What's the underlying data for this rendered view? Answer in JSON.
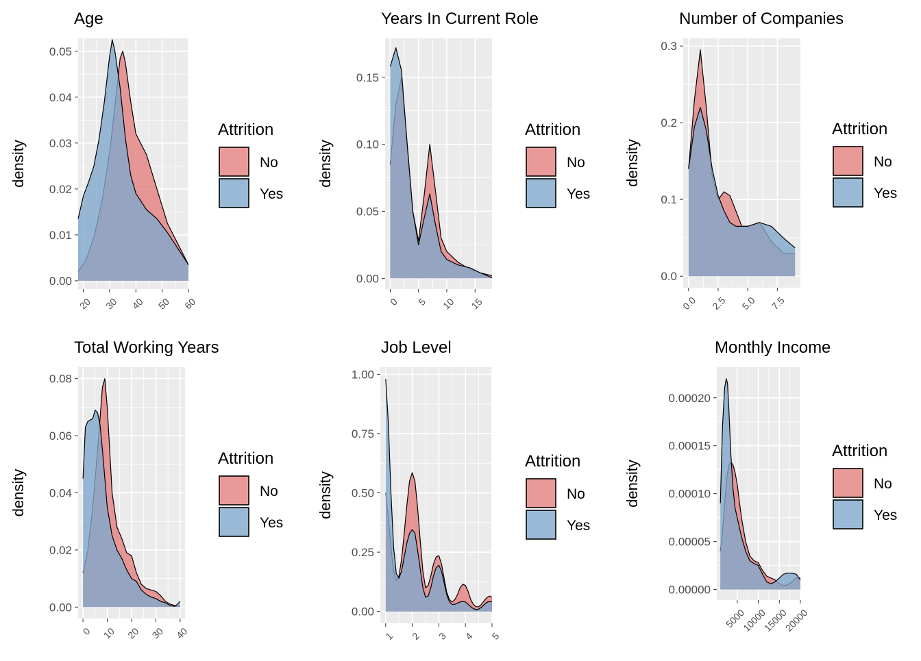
{
  "colors": {
    "no": "#e57f7f",
    "yes": "#7fa8cc",
    "panel": "#ebebeb",
    "grid": "#ffffff",
    "tick_label": "#4d4d4d"
  },
  "chart_data": [
    {
      "type": "area",
      "title": "Age",
      "xlabel": "",
      "ylabel": "density",
      "xlim": [
        18,
        60
      ],
      "ylim": [
        -0.0018,
        0.0528
      ],
      "x_ticks": [
        20,
        30,
        40,
        50,
        60
      ],
      "x_tick_labels": [
        "20",
        "30",
        "40",
        "50",
        "60"
      ],
      "y_ticks": [
        0,
        0.01,
        0.02,
        0.03,
        0.04,
        0.05
      ],
      "y_tick_labels": [
        "0.00",
        "0.01",
        "0.02",
        "0.03",
        "0.04",
        "0.05"
      ],
      "legend": {
        "title": "Attrition",
        "position": "right",
        "entries": [
          "No",
          "Yes"
        ]
      },
      "series": [
        {
          "name": "No",
          "x": [
            18,
            21,
            24,
            27,
            30,
            32,
            34,
            35,
            36,
            38,
            40,
            44,
            48,
            52,
            56,
            60
          ],
          "y": [
            0.002,
            0.0045,
            0.0095,
            0.017,
            0.028,
            0.038,
            0.0485,
            0.05,
            0.0475,
            0.039,
            0.032,
            0.0275,
            0.02,
            0.0125,
            0.008,
            0.0035
          ]
        },
        {
          "name": "Yes",
          "x": [
            18,
            20,
            22,
            24,
            26,
            28,
            30,
            31,
            32,
            34,
            36,
            38,
            40,
            44,
            48,
            52,
            56,
            60
          ],
          "y": [
            0.0135,
            0.0185,
            0.0215,
            0.025,
            0.031,
            0.039,
            0.049,
            0.0525,
            0.05,
            0.042,
            0.031,
            0.023,
            0.019,
            0.0155,
            0.0135,
            0.0105,
            0.007,
            0.0035
          ]
        }
      ]
    },
    {
      "type": "area",
      "title": "Years In Current Role",
      "xlabel": "",
      "ylabel": "density",
      "xlim": [
        -0.9,
        18.0
      ],
      "ylim": [
        -0.008,
        0.179
      ],
      "x_ticks": [
        0,
        5,
        10,
        15
      ],
      "x_tick_labels": [
        "0",
        "5",
        "10",
        "15"
      ],
      "y_ticks": [
        0,
        0.05,
        0.1,
        0.15
      ],
      "y_tick_labels": [
        "0.00",
        "0.05",
        "0.10",
        "0.15"
      ],
      "legend": {
        "title": "Attrition",
        "position": "right",
        "entries": [
          "No",
          "Yes"
        ]
      },
      "series": [
        {
          "name": "No",
          "x": [
            0,
            1,
            2,
            3,
            4,
            5,
            6,
            7,
            8,
            9,
            10,
            12,
            14,
            16,
            18
          ],
          "y": [
            0.085,
            0.13,
            0.15,
            0.1,
            0.05,
            0.028,
            0.062,
            0.1,
            0.065,
            0.03,
            0.02,
            0.012,
            0.007,
            0.004,
            0.002
          ]
        },
        {
          "name": "Yes",
          "x": [
            0,
            1,
            2,
            3,
            4,
            5,
            6,
            7,
            8,
            9,
            10,
            12,
            14,
            16,
            18
          ],
          "y": [
            0.158,
            0.172,
            0.155,
            0.1,
            0.05,
            0.025,
            0.045,
            0.063,
            0.04,
            0.02,
            0.014,
            0.01,
            0.008,
            0.004,
            0.0005
          ]
        }
      ]
    },
    {
      "type": "area",
      "title": "Number of Companies",
      "xlabel": "",
      "ylabel": "density",
      "xlim": [
        -0.45,
        9.45
      ],
      "ylim": [
        -0.015,
        0.31
      ],
      "x_ticks": [
        0,
        2.5,
        5,
        7.5
      ],
      "x_tick_labels": [
        "0.0",
        "2.5",
        "5.0",
        "7.5"
      ],
      "y_ticks": [
        0,
        0.1,
        0.2,
        0.3
      ],
      "y_tick_labels": [
        "0.0",
        "0.1",
        "0.2",
        "0.3"
      ],
      "legend": {
        "title": "Attrition",
        "position": "right",
        "entries": [
          "No",
          "Yes"
        ]
      },
      "series": [
        {
          "name": "No",
          "x": [
            0,
            0.5,
            1,
            1.5,
            2,
            2.5,
            3,
            3.5,
            4,
            4.5,
            5,
            6,
            7,
            8,
            9
          ],
          "y": [
            0.14,
            0.23,
            0.295,
            0.22,
            0.13,
            0.1,
            0.11,
            0.105,
            0.085,
            0.065,
            0.065,
            0.07,
            0.045,
            0.03,
            0.03
          ]
        },
        {
          "name": "Yes",
          "x": [
            0,
            0.5,
            1,
            1.5,
            2,
            2.5,
            3,
            3.5,
            4,
            5,
            6,
            7,
            8,
            9
          ],
          "y": [
            0.14,
            0.195,
            0.22,
            0.19,
            0.14,
            0.105,
            0.085,
            0.07,
            0.065,
            0.065,
            0.07,
            0.065,
            0.05,
            0.037
          ]
        }
      ]
    },
    {
      "type": "area",
      "title": "Total Working Years",
      "xlabel": "",
      "ylabel": "density",
      "xlim": [
        -2.0,
        42.0
      ],
      "ylim": [
        -0.004,
        0.084
      ],
      "x_ticks": [
        0,
        10,
        20,
        30,
        40
      ],
      "x_tick_labels": [
        "0",
        "10",
        "20",
        "30",
        "40"
      ],
      "y_ticks": [
        0,
        0.02,
        0.04,
        0.06,
        0.08
      ],
      "y_tick_labels": [
        "0.00",
        "0.02",
        "0.04",
        "0.06",
        "0.08"
      ],
      "legend": {
        "title": "Attrition",
        "position": "right",
        "entries": [
          "No",
          "Yes"
        ]
      },
      "series": [
        {
          "name": "No",
          "x": [
            0,
            2,
            4,
            6,
            8,
            9,
            10,
            12,
            14,
            16,
            18,
            20,
            22,
            24,
            26,
            28,
            30,
            32,
            34,
            36,
            38,
            40
          ],
          "y": [
            0.012,
            0.02,
            0.035,
            0.055,
            0.077,
            0.08,
            0.07,
            0.04,
            0.028,
            0.024,
            0.019,
            0.018,
            0.012,
            0.008,
            0.0065,
            0.006,
            0.0055,
            0.004,
            0.002,
            0.001,
            0.0005,
            0.0002
          ]
        },
        {
          "name": "Yes",
          "x": [
            0,
            1,
            2,
            4,
            5,
            6,
            7,
            8,
            10,
            12,
            14,
            16,
            18,
            20,
            22,
            24,
            26,
            28,
            30,
            32,
            34,
            36,
            38,
            40
          ],
          "y": [
            0.045,
            0.063,
            0.065,
            0.066,
            0.069,
            0.068,
            0.064,
            0.055,
            0.035,
            0.025,
            0.02,
            0.017,
            0.013,
            0.01,
            0.009,
            0.006,
            0.0045,
            0.0035,
            0.003,
            0.002,
            0.0015,
            0.0005,
            0.0003,
            0.002
          ]
        }
      ]
    },
    {
      "type": "area",
      "title": "Job Level",
      "xlabel": "",
      "ylabel": "density",
      "xlim": [
        0.8,
        5.0
      ],
      "ylim": [
        -0.05,
        1.03
      ],
      "x_ticks": [
        1,
        2,
        3,
        4,
        5
      ],
      "x_tick_labels": [
        "1",
        "2",
        "3",
        "4",
        "5"
      ],
      "y_ticks": [
        0,
        0.25,
        0.5,
        0.75,
        1.0
      ],
      "y_tick_labels": [
        "0.00",
        "0.25",
        "0.50",
        "0.75",
        "1.00"
      ],
      "legend": {
        "title": "Attrition",
        "position": "right",
        "entries": [
          "No",
          "Yes"
        ]
      },
      "series": [
        {
          "name": "No",
          "x": [
            1,
            1.1,
            1.2,
            1.3,
            1.4,
            1.5,
            1.6,
            1.7,
            1.8,
            1.9,
            2,
            2.1,
            2.2,
            2.3,
            2.4,
            2.5,
            2.6,
            2.7,
            2.8,
            2.9,
            3,
            3.1,
            3.2,
            3.3,
            3.4,
            3.5,
            3.6,
            3.7,
            3.8,
            3.9,
            4,
            4.1,
            4.2,
            4.3,
            4.4,
            4.5,
            4.6,
            4.7,
            4.8,
            4.9,
            5
          ],
          "y": [
            0.5,
            0.4,
            0.27,
            0.17,
            0.13,
            0.15,
            0.22,
            0.33,
            0.45,
            0.55,
            0.585,
            0.55,
            0.44,
            0.3,
            0.17,
            0.1,
            0.11,
            0.15,
            0.2,
            0.23,
            0.235,
            0.2,
            0.14,
            0.08,
            0.05,
            0.04,
            0.05,
            0.07,
            0.1,
            0.115,
            0.11,
            0.085,
            0.05,
            0.03,
            0.02,
            0.02,
            0.03,
            0.045,
            0.058,
            0.065,
            0.06
          ]
        },
        {
          "name": "Yes",
          "x": [
            1,
            1.1,
            1.2,
            1.3,
            1.4,
            1.5,
            1.6,
            1.7,
            1.8,
            1.9,
            2,
            2.1,
            2.2,
            2.3,
            2.4,
            2.5,
            2.6,
            2.7,
            2.8,
            2.9,
            3,
            3.1,
            3.2,
            3.3,
            3.4,
            3.5,
            3.6,
            3.7,
            3.8,
            3.9,
            4,
            4.1,
            4.2,
            4.3,
            4.4,
            4.5,
            4.6,
            4.7,
            4.8,
            4.9,
            5
          ],
          "y": [
            0.98,
            0.8,
            0.5,
            0.27,
            0.16,
            0.14,
            0.17,
            0.23,
            0.29,
            0.33,
            0.345,
            0.33,
            0.26,
            0.18,
            0.1,
            0.06,
            0.065,
            0.1,
            0.15,
            0.185,
            0.195,
            0.17,
            0.12,
            0.07,
            0.04,
            0.03,
            0.03,
            0.035,
            0.04,
            0.042,
            0.04,
            0.03,
            0.02,
            0.012,
            0.008,
            0.01,
            0.018,
            0.028,
            0.038,
            0.042,
            0.04
          ]
        }
      ]
    },
    {
      "type": "area",
      "title": "Monthly Income",
      "xlabel": "",
      "ylabel": "density",
      "xlim": [
        150,
        20000
      ],
      "ylim": [
        -1.1e-05,
        0.000232
      ],
      "x_ticks": [
        5000,
        10000,
        15000,
        20000
      ],
      "x_tick_labels": [
        "5000",
        "10000",
        "15000",
        "20000"
      ],
      "y_ticks": [
        0,
        5e-05,
        0.0001,
        0.00015,
        0.0002
      ],
      "y_tick_labels": [
        "0.00000",
        "0.00005",
        "0.00010",
        "0.00015",
        "0.00020"
      ],
      "legend": {
        "title": "Attrition",
        "position": "right",
        "entries": [
          "No",
          "Yes"
        ]
      },
      "series": [
        {
          "name": "No",
          "x": [
            1000,
            1500,
            2000,
            2500,
            3000,
            3500,
            4000,
            4500,
            5000,
            5500,
            6000,
            7000,
            8000,
            9000,
            10000,
            11000,
            12000,
            13000,
            14000,
            15000,
            16000,
            17000,
            18000,
            19000,
            20000
          ],
          "y": [
            4e-05,
            6e-05,
            8.8e-05,
            0.000115,
            0.00013,
            0.000133,
            0.00013,
            0.000122,
            0.00011,
            9.2e-05,
            7.5e-05,
            5e-05,
            3.5e-05,
            3e-05,
            2.8e-05,
            2e-05,
            1.4e-05,
            1.2e-05,
            1e-05,
            6e-06,
            4e-06,
            5e-06,
            8e-06,
            1.2e-05,
            1.2e-05
          ]
        },
        {
          "name": "Yes",
          "x": [
            1000,
            1500,
            2000,
            2400,
            2700,
            3000,
            3500,
            4000,
            4500,
            5000,
            5500,
            6000,
            7000,
            8000,
            9000,
            10000,
            11000,
            12000,
            13000,
            14000,
            15000,
            16000,
            17000,
            18000,
            19000,
            20000
          ],
          "y": [
            9e-05,
            0.00017,
            0.00021,
            0.00022,
            0.000215,
            0.00019,
            0.00014,
            0.000105,
            8.5e-05,
            7.5e-05,
            6.5e-05,
            5.5e-05,
            4e-05,
            3e-05,
            2.7e-05,
            2.5e-05,
            1.6e-05,
            8e-06,
            6e-06,
            8e-06,
            1.2e-05,
            1.6e-05,
            1.7e-05,
            1.7e-05,
            1.6e-05,
            1e-05
          ]
        }
      ]
    }
  ]
}
